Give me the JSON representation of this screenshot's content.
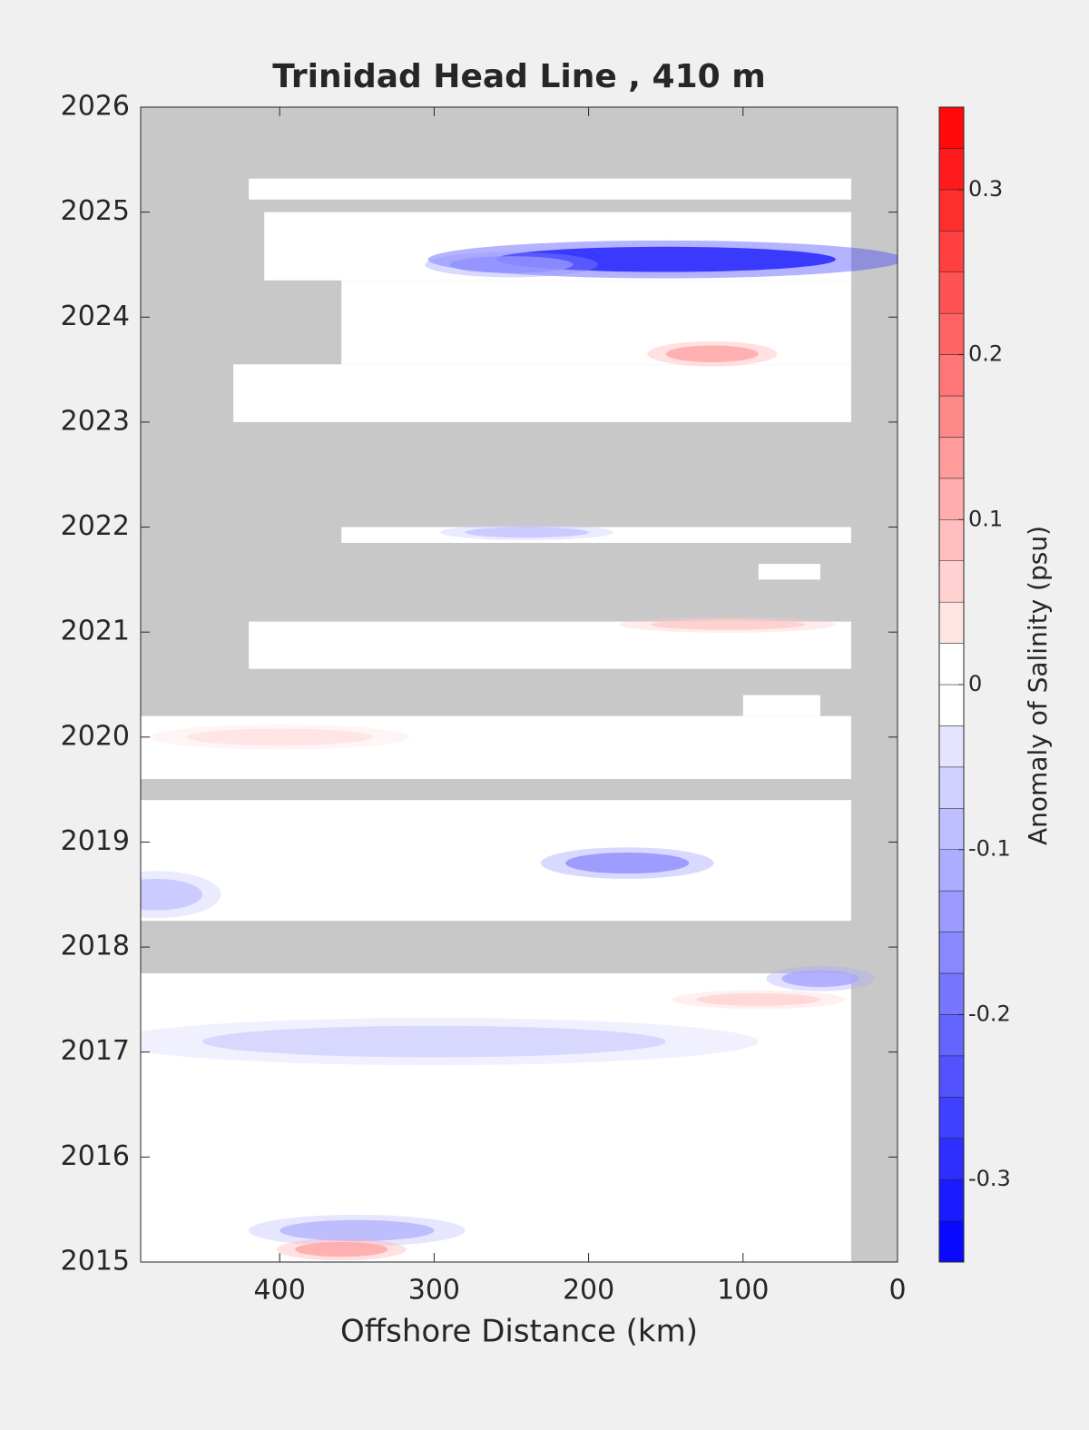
{
  "chart_data": {
    "type": "contour",
    "title": "Trinidad Head Line , 410 m",
    "xlabel": "Offshore Distance (km)",
    "colorbar_label": "Anomaly of Salinity (psu)",
    "xlim": [
      490,
      0
    ],
    "ylim": [
      2015,
      2026
    ],
    "xticks": [
      400,
      300,
      200,
      100,
      0
    ],
    "yticks": [
      2015,
      2016,
      2017,
      2018,
      2019,
      2020,
      2021,
      2022,
      2023,
      2024,
      2025,
      2026
    ],
    "clim": [
      -0.35,
      0.35
    ],
    "clevel_step": 0.025,
    "cticks": [
      -0.3,
      -0.2,
      -0.1,
      0,
      0.1,
      0.2,
      0.3
    ],
    "coverage": [
      {
        "x": [
          420,
          30
        ],
        "y": [
          2025.12,
          2025.32
        ]
      },
      {
        "x": [
          410,
          30
        ],
        "y": [
          2024.35,
          2025.0
        ]
      },
      {
        "x": [
          360,
          30
        ],
        "y": [
          2023.55,
          2024.35
        ]
      },
      {
        "x": [
          430,
          30
        ],
        "y": [
          2023.0,
          2023.55
        ]
      },
      {
        "x": [
          360,
          30
        ],
        "y": [
          2021.85,
          2022.0
        ]
      },
      {
        "x": [
          90,
          50
        ],
        "y": [
          2021.5,
          2021.65
        ]
      },
      {
        "x": [
          420,
          30
        ],
        "y": [
          2020.65,
          2021.1
        ]
      },
      {
        "x": [
          100,
          50
        ],
        "y": [
          2020.2,
          2020.4
        ]
      },
      {
        "x": [
          490,
          30
        ],
        "y": [
          2019.6,
          2020.2
        ]
      },
      {
        "x": [
          490,
          30
        ],
        "y": [
          2018.25,
          2019.4
        ]
      },
      {
        "x": [
          490,
          30
        ],
        "y": [
          2015.0,
          2017.75
        ]
      }
    ],
    "anomalies": [
      {
        "x": 150,
        "y": 2024.55,
        "rx": 110,
        "ry": 0.12,
        "value": -0.3
      },
      {
        "x": 250,
        "y": 2024.5,
        "rx": 40,
        "ry": 0.08,
        "value": -0.15
      },
      {
        "x": 120,
        "y": 2023.65,
        "rx": 30,
        "ry": 0.08,
        "value": 0.12
      },
      {
        "x": 175,
        "y": 2018.8,
        "rx": 40,
        "ry": 0.1,
        "value": -0.15
      },
      {
        "x": 50,
        "y": 2017.7,
        "rx": 25,
        "ry": 0.08,
        "value": -0.12
      },
      {
        "x": 350,
        "y": 2015.3,
        "rx": 50,
        "ry": 0.1,
        "value": -0.1
      },
      {
        "x": 360,
        "y": 2015.12,
        "rx": 30,
        "ry": 0.07,
        "value": 0.12
      },
      {
        "x": 110,
        "y": 2021.07,
        "rx": 50,
        "ry": 0.05,
        "value": 0.07
      },
      {
        "x": 480,
        "y": 2018.5,
        "rx": 30,
        "ry": 0.15,
        "value": -0.08
      },
      {
        "x": 300,
        "y": 2017.1,
        "rx": 150,
        "ry": 0.15,
        "value": -0.06
      },
      {
        "x": 400,
        "y": 2020.0,
        "rx": 60,
        "ry": 0.08,
        "value": 0.04
      },
      {
        "x": 240,
        "y": 2021.95,
        "rx": 40,
        "ry": 0.05,
        "value": -0.08
      },
      {
        "x": 90,
        "y": 2017.5,
        "rx": 40,
        "ry": 0.06,
        "value": 0.06
      }
    ]
  }
}
